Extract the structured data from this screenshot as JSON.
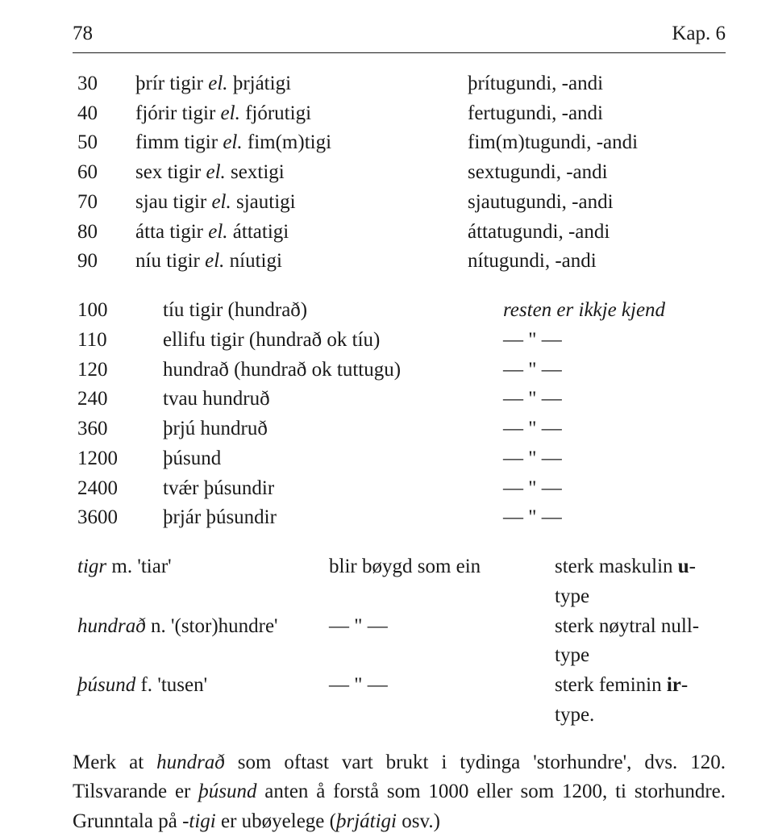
{
  "header": {
    "page_number": "78",
    "chapter": "Kap. 6"
  },
  "tens": [
    {
      "num": "30",
      "card_a": "þrír tigir ",
      "card_b": "el.",
      "card_c": " þrjátigi",
      "ord": "þrítugundi, -andi"
    },
    {
      "num": "40",
      "card_a": "fjórir tigir ",
      "card_b": "el.",
      "card_c": " fjórutigi",
      "ord": "fertugundi, -andi"
    },
    {
      "num": "50",
      "card_a": "fimm tigir ",
      "card_b": "el.",
      "card_c": " fim(m)tigi",
      "ord": "fim(m)tugundi, -andi"
    },
    {
      "num": "60",
      "card_a": "sex tigir ",
      "card_b": "el.",
      "card_c": " sextigi",
      "ord": "sextugundi, -andi"
    },
    {
      "num": "70",
      "card_a": "sjau tigir ",
      "card_b": "el.",
      "card_c": " sjautigi",
      "ord": "sjautugundi, -andi"
    },
    {
      "num": "80",
      "card_a": "átta tigir ",
      "card_b": "el.",
      "card_c": " áttatigi",
      "ord": "áttatugundi, -andi"
    },
    {
      "num": "90",
      "card_a": "níu tigir ",
      "card_b": "el.",
      "card_c": " níutigi",
      "ord": "nítugundi, -andi"
    }
  ],
  "bigs": [
    {
      "num": "100",
      "term": "tíu tigir (hundrað)",
      "note": " resten er ikkje kjend",
      "note_italic": true
    },
    {
      "num": "110",
      "term": "ellifu tigir (hundrað ok tíu)",
      "note": "— \" —"
    },
    {
      "num": "120",
      "term": "hundrað (hundrað ok tuttugu)",
      "note": "— \" —"
    },
    {
      "num": "240",
      "term": "tvau hundruð",
      "note": "— \" —"
    },
    {
      "num": "360",
      "term": "þrjú hundruð",
      "note": "— \" —"
    },
    {
      "num": "1200",
      "term": "þúsund",
      "note": "— \" —"
    },
    {
      "num": "2400",
      "term": "tvǽr þúsundir",
      "note": "— \" —"
    },
    {
      "num": "3600",
      "term": "þrjár þúsundir",
      "note": "— \" —"
    }
  ],
  "decl": [
    {
      "word": "tigr",
      "g": " m. ",
      "gloss": "'tiar'",
      "mid": "blir bøygd som ein",
      "right_a": "sterk maskulin ",
      "right_b": "u",
      "right_c": "-type"
    },
    {
      "word": "hundrað",
      "g": " n. ",
      "gloss": "'(stor)hundre'",
      "mid": "— \" —",
      "right_a": "sterk nøytral null-type"
    },
    {
      "word": "þúsund",
      "g": " f. ",
      "gloss": "'tusen'",
      "mid": "— \" —",
      "right_a": "sterk feminin ",
      "right_b": "ir",
      "right_c": "-type."
    }
  ],
  "paragraph": {
    "p1": "Merk at ",
    "i1": "hundrað",
    "p2": " som oftast vart brukt i tydinga 'storhundre', dvs. 120. Tilsvarande er ",
    "i2": "þúsund",
    "p3": " anten å forstå som 1000 eller som 1200, ti storhundre. Grunntala på ",
    "i3": "-tigi",
    "p4": " er ubøyelege (",
    "i4": "þrjátigi",
    "p5": " osv.)"
  }
}
